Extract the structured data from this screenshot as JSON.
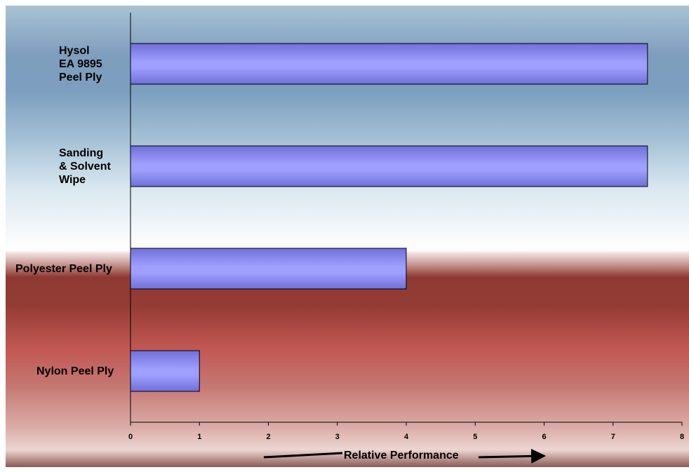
{
  "chart_data": {
    "type": "bar",
    "orientation": "horizontal",
    "categories": [
      "Hysol\nEA 9895\nPeel Ply",
      "Sanding\n& Solvent\nWipe",
      "Polyester Peel Ply",
      "Nylon Peel Ply"
    ],
    "values": [
      7.5,
      7.5,
      4,
      1
    ],
    "xlabel": "Relative Performance",
    "ylabel": "",
    "title": "",
    "xlim": [
      0,
      8
    ],
    "xticks": [
      "0",
      "1",
      "2",
      "3",
      "4",
      "5",
      "6",
      "7",
      "8"
    ],
    "grid": false,
    "legend": "none",
    "colors": {
      "bar_fill_light": "#9f9fff",
      "bar_fill_dark": "#6f6fd8",
      "bar_stroke": "#000000",
      "background_top": "#7f9dbd",
      "background_bottom": "#b04a44"
    }
  }
}
